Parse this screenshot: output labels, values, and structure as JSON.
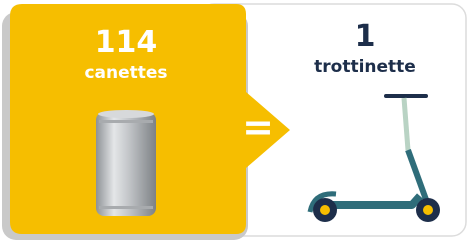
{
  "left": {
    "number": "114",
    "label": "canettes"
  },
  "equals": "=",
  "right": {
    "number": "1",
    "label": "trottinette"
  }
}
